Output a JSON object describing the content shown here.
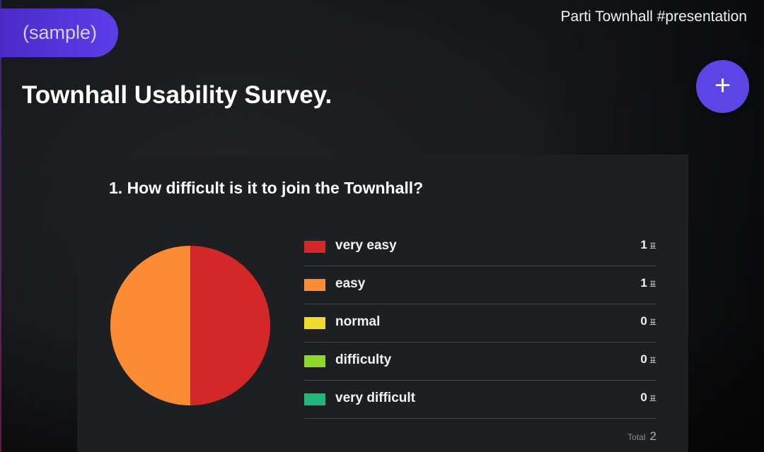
{
  "header": {
    "sample_badge": "(sample)",
    "channel_title": "Parti Townhall #presentation",
    "add_button_glyph": "+"
  },
  "survey": {
    "title": "Townhall Usability Survey."
  },
  "question": {
    "title": "1. How difficult is it to join the Townhall?",
    "unit": "표",
    "options": [
      {
        "label": "very easy",
        "count": "1",
        "color": "#d42727"
      },
      {
        "label": "easy",
        "count": "1",
        "color": "#fb8b35"
      },
      {
        "label": "normal",
        "count": "0",
        "color": "#eedb2a"
      },
      {
        "label": "difficulty",
        "count": "0",
        "color": "#8ed62a"
      },
      {
        "label": "very difficult",
        "count": "0",
        "color": "#1fb87a"
      }
    ],
    "total_label": "Total",
    "total_value": "2"
  },
  "chart_data": {
    "type": "pie",
    "categories": [
      "very easy",
      "easy",
      "normal",
      "difficulty",
      "very difficult"
    ],
    "values": [
      1,
      1,
      0,
      0,
      0
    ],
    "colors": [
      "#d42727",
      "#fb8b35",
      "#eedb2a",
      "#8ed62a",
      "#1fb87a"
    ],
    "title": "1. How difficult is it to join the Townhall?"
  }
}
